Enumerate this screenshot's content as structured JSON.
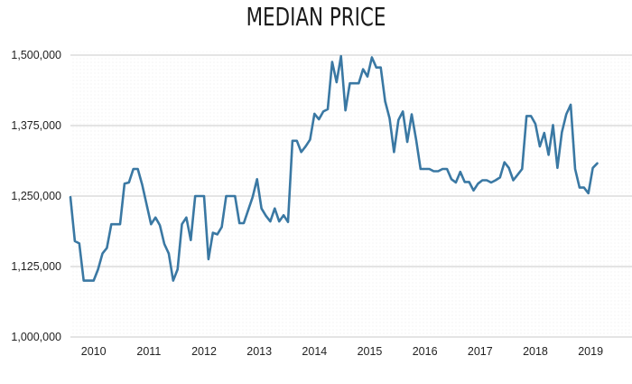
{
  "chart_data": {
    "type": "line",
    "title": "MEDIAN PRICE",
    "xlabel": "",
    "ylabel": "",
    "ylim": [
      1000000,
      1500000
    ],
    "xlim": [
      2009.58,
      2019.75
    ],
    "y_ticks": [
      {
        "value": 1000000,
        "label": "1,000,000"
      },
      {
        "value": 1125000,
        "label": "1,125,000"
      },
      {
        "value": 1250000,
        "label": "1,250,000"
      },
      {
        "value": 1375000,
        "label": "1,375,000"
      },
      {
        "value": 1500000,
        "label": "1,500,000"
      }
    ],
    "x_ticks": [
      {
        "value": 2010,
        "label": "2010"
      },
      {
        "value": 2011,
        "label": "2011"
      },
      {
        "value": 2012,
        "label": "2012"
      },
      {
        "value": 2013,
        "label": "2013"
      },
      {
        "value": 2014,
        "label": "2014"
      },
      {
        "value": 2015,
        "label": "2015"
      },
      {
        "value": 2016,
        "label": "2016"
      },
      {
        "value": 2017,
        "label": "2017"
      },
      {
        "value": 2018,
        "label": "2018"
      },
      {
        "value": 2019,
        "label": "2019"
      }
    ],
    "grid": true,
    "line_color": "#3a78a3",
    "series": [
      {
        "points": [
          [
            2009.58,
            1248000
          ],
          [
            2009.66,
            1170000
          ],
          [
            2009.74,
            1166000
          ],
          [
            2009.82,
            1100000
          ],
          [
            2009.9,
            1100000
          ],
          [
            2010.0,
            1100000
          ],
          [
            2010.08,
            1120000
          ],
          [
            2010.16,
            1148000
          ],
          [
            2010.24,
            1158000
          ],
          [
            2010.32,
            1200000
          ],
          [
            2010.4,
            1200000
          ],
          [
            2010.48,
            1200000
          ],
          [
            2010.56,
            1272000
          ],
          [
            2010.64,
            1274000
          ],
          [
            2010.72,
            1298000
          ],
          [
            2010.8,
            1298000
          ],
          [
            2010.88,
            1270000
          ],
          [
            2010.96,
            1235000
          ],
          [
            2011.04,
            1200000
          ],
          [
            2011.12,
            1212000
          ],
          [
            2011.2,
            1198000
          ],
          [
            2011.28,
            1165000
          ],
          [
            2011.36,
            1148000
          ],
          [
            2011.44,
            1100000
          ],
          [
            2011.52,
            1120000
          ],
          [
            2011.6,
            1200000
          ],
          [
            2011.68,
            1212000
          ],
          [
            2011.76,
            1172000
          ],
          [
            2011.84,
            1250000
          ],
          [
            2011.92,
            1250000
          ],
          [
            2012.0,
            1250000
          ],
          [
            2012.08,
            1138000
          ],
          [
            2012.16,
            1185000
          ],
          [
            2012.24,
            1182000
          ],
          [
            2012.32,
            1195000
          ],
          [
            2012.4,
            1250000
          ],
          [
            2012.48,
            1250000
          ],
          [
            2012.56,
            1250000
          ],
          [
            2012.64,
            1202000
          ],
          [
            2012.72,
            1202000
          ],
          [
            2012.8,
            1225000
          ],
          [
            2012.88,
            1248000
          ],
          [
            2012.96,
            1280000
          ],
          [
            2013.04,
            1228000
          ],
          [
            2013.12,
            1215000
          ],
          [
            2013.2,
            1205000
          ],
          [
            2013.28,
            1228000
          ],
          [
            2013.36,
            1205000
          ],
          [
            2013.44,
            1216000
          ],
          [
            2013.52,
            1204000
          ],
          [
            2013.6,
            1348000
          ],
          [
            2013.68,
            1348000
          ],
          [
            2013.76,
            1328000
          ],
          [
            2013.84,
            1338000
          ],
          [
            2013.92,
            1350000
          ],
          [
            2014.0,
            1396000
          ],
          [
            2014.08,
            1386000
          ],
          [
            2014.16,
            1400000
          ],
          [
            2014.24,
            1404000
          ],
          [
            2014.32,
            1488000
          ],
          [
            2014.4,
            1452000
          ],
          [
            2014.48,
            1498000
          ],
          [
            2014.56,
            1402000
          ],
          [
            2014.64,
            1450000
          ],
          [
            2014.72,
            1450000
          ],
          [
            2014.8,
            1450000
          ],
          [
            2014.88,
            1475000
          ],
          [
            2014.96,
            1462000
          ],
          [
            2015.04,
            1496000
          ],
          [
            2015.12,
            1478000
          ],
          [
            2015.2,
            1478000
          ],
          [
            2015.28,
            1418000
          ],
          [
            2015.36,
            1388000
          ],
          [
            2015.44,
            1328000
          ],
          [
            2015.52,
            1385000
          ],
          [
            2015.6,
            1400000
          ],
          [
            2015.68,
            1346000
          ],
          [
            2015.76,
            1395000
          ],
          [
            2015.84,
            1350000
          ],
          [
            2015.92,
            1298000
          ],
          [
            2016.0,
            1298000
          ],
          [
            2016.08,
            1298000
          ],
          [
            2016.16,
            1294000
          ],
          [
            2016.24,
            1294000
          ],
          [
            2016.32,
            1298000
          ],
          [
            2016.4,
            1298000
          ],
          [
            2016.48,
            1280000
          ],
          [
            2016.56,
            1274000
          ],
          [
            2016.64,
            1293000
          ],
          [
            2016.72,
            1275000
          ],
          [
            2016.8,
            1275000
          ],
          [
            2016.88,
            1260000
          ],
          [
            2016.96,
            1272000
          ],
          [
            2017.04,
            1278000
          ],
          [
            2017.12,
            1278000
          ],
          [
            2017.2,
            1274000
          ],
          [
            2017.28,
            1278000
          ],
          [
            2017.36,
            1283000
          ],
          [
            2017.44,
            1310000
          ],
          [
            2017.52,
            1300000
          ],
          [
            2017.6,
            1278000
          ],
          [
            2017.68,
            1288000
          ],
          [
            2017.76,
            1298000
          ],
          [
            2017.84,
            1392000
          ],
          [
            2017.92,
            1392000
          ],
          [
            2018.0,
            1378000
          ],
          [
            2018.08,
            1338000
          ],
          [
            2018.16,
            1362000
          ],
          [
            2018.24,
            1323000
          ],
          [
            2018.32,
            1376000
          ],
          [
            2018.4,
            1300000
          ],
          [
            2018.48,
            1363000
          ],
          [
            2018.56,
            1395000
          ],
          [
            2018.64,
            1412000
          ],
          [
            2018.72,
            1298000
          ],
          [
            2018.8,
            1265000
          ],
          [
            2018.88,
            1265000
          ],
          [
            2018.96,
            1255000
          ],
          [
            2019.04,
            1300000
          ],
          [
            2019.12,
            1308000
          ]
        ]
      }
    ]
  }
}
